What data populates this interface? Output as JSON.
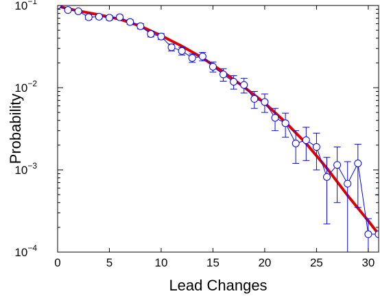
{
  "chart_data": {
    "type": "scatter",
    "title": "",
    "xlabel": "Lead Changes",
    "ylabel": "Probability",
    "xlim": [
      0,
      31
    ],
    "ylim": [
      0.0001,
      0.1
    ],
    "yscale": "log",
    "grid": false,
    "xticks": [
      0,
      5,
      10,
      15,
      20,
      25,
      30
    ],
    "xtick_labels": [
      "0",
      "5",
      "10",
      "15",
      "20",
      "25",
      "30"
    ],
    "yticks": [
      0.0001,
      0.001,
      0.01,
      0.1
    ],
    "ytick_labels": [
      {
        "base": "10",
        "exp": "−4"
      },
      {
        "base": "10",
        "exp": "−3"
      },
      {
        "base": "10",
        "exp": "−2"
      },
      {
        "base": "10",
        "exp": "−1"
      }
    ],
    "series": [
      {
        "kind": "markers_with_errorbars",
        "color": "#0000ff",
        "marker": "open-circle",
        "points": [
          {
            "x": 0,
            "y": 0.1,
            "err_lo": 0.0,
            "err_hi": 0.0
          },
          {
            "x": 1,
            "y": 0.088,
            "err_lo": 0.004,
            "err_hi": 0.004
          },
          {
            "x": 2,
            "y": 0.085,
            "err_lo": 0.004,
            "err_hi": 0.004
          },
          {
            "x": 3,
            "y": 0.072,
            "err_lo": 0.0045,
            "err_hi": 0.0045
          },
          {
            "x": 4,
            "y": 0.073,
            "err_lo": 0.0045,
            "err_hi": 0.0045
          },
          {
            "x": 5,
            "y": 0.071,
            "err_lo": 0.0045,
            "err_hi": 0.0045
          },
          {
            "x": 6,
            "y": 0.072,
            "err_lo": 0.0045,
            "err_hi": 0.0045
          },
          {
            "x": 7,
            "y": 0.063,
            "err_lo": 0.004,
            "err_hi": 0.004
          },
          {
            "x": 8,
            "y": 0.056,
            "err_lo": 0.004,
            "err_hi": 0.004
          },
          {
            "x": 9,
            "y": 0.045,
            "err_lo": 0.0035,
            "err_hi": 0.0035
          },
          {
            "x": 10,
            "y": 0.042,
            "err_lo": 0.0035,
            "err_hi": 0.0035
          },
          {
            "x": 11,
            "y": 0.031,
            "err_lo": 0.003,
            "err_hi": 0.003
          },
          {
            "x": 12,
            "y": 0.028,
            "err_lo": 0.003,
            "err_hi": 0.003
          },
          {
            "x": 13,
            "y": 0.023,
            "err_lo": 0.0027,
            "err_hi": 0.0027
          },
          {
            "x": 14,
            "y": 0.024,
            "err_lo": 0.0028,
            "err_hi": 0.0028
          },
          {
            "x": 15,
            "y": 0.018,
            "err_lo": 0.0025,
            "err_hi": 0.0025
          },
          {
            "x": 16,
            "y": 0.0145,
            "err_lo": 0.0025,
            "err_hi": 0.0025
          },
          {
            "x": 17,
            "y": 0.0118,
            "err_lo": 0.0022,
            "err_hi": 0.0022
          },
          {
            "x": 18,
            "y": 0.0108,
            "err_lo": 0.0022,
            "err_hi": 0.0022
          },
          {
            "x": 19,
            "y": 0.0073,
            "err_lo": 0.0017,
            "err_hi": 0.0017
          },
          {
            "x": 20,
            "y": 0.0067,
            "err_lo": 0.0017,
            "err_hi": 0.0017
          },
          {
            "x": 21,
            "y": 0.0043,
            "err_lo": 0.0013,
            "err_hi": 0.0013
          },
          {
            "x": 22,
            "y": 0.0037,
            "err_lo": 0.0012,
            "err_hi": 0.0012
          },
          {
            "x": 23,
            "y": 0.0021,
            "err_lo": 0.0009,
            "err_hi": 0.0009
          },
          {
            "x": 24,
            "y": 0.0023,
            "err_lo": 0.001,
            "err_hi": 0.001
          },
          {
            "x": 25,
            "y": 0.0019,
            "err_lo": 0.0009,
            "err_hi": 0.0009
          },
          {
            "x": 26,
            "y": 0.00082,
            "err_lo": 0.0006,
            "err_hi": 0.0006
          },
          {
            "x": 27,
            "y": 0.00115,
            "err_lo": 0.00075,
            "err_hi": 0.00075
          },
          {
            "x": 28,
            "y": 0.00068,
            "err_lo": 0.00058,
            "err_hi": 0.00058
          },
          {
            "x": 29,
            "y": 0.0012,
            "err_lo": 0.00085,
            "err_hi": 0.00085
          },
          {
            "x": 30,
            "y": 0.000165,
            "err_lo": 9e-05,
            "err_hi": 9e-05
          },
          {
            "x": 31,
            "y": 0.000165,
            "err_lo": 0.0,
            "err_hi": 0.00033
          }
        ]
      },
      {
        "kind": "fit_line",
        "color": "#dd0000",
        "points": [
          {
            "x": 0,
            "y": 0.098
          },
          {
            "x": 2,
            "y": 0.086
          },
          {
            "x": 4,
            "y": 0.077
          },
          {
            "x": 6,
            "y": 0.068
          },
          {
            "x": 8,
            "y": 0.056
          },
          {
            "x": 10,
            "y": 0.043
          },
          {
            "x": 12,
            "y": 0.032
          },
          {
            "x": 14,
            "y": 0.023
          },
          {
            "x": 16,
            "y": 0.0155
          },
          {
            "x": 18,
            "y": 0.0102
          },
          {
            "x": 20,
            "y": 0.0065
          },
          {
            "x": 22,
            "y": 0.0038
          },
          {
            "x": 24,
            "y": 0.0021
          },
          {
            "x": 26,
            "y": 0.00105
          },
          {
            "x": 28,
            "y": 0.00049
          },
          {
            "x": 30,
            "y": 0.00024
          },
          {
            "x": 31,
            "y": 0.000165
          }
        ]
      }
    ]
  }
}
